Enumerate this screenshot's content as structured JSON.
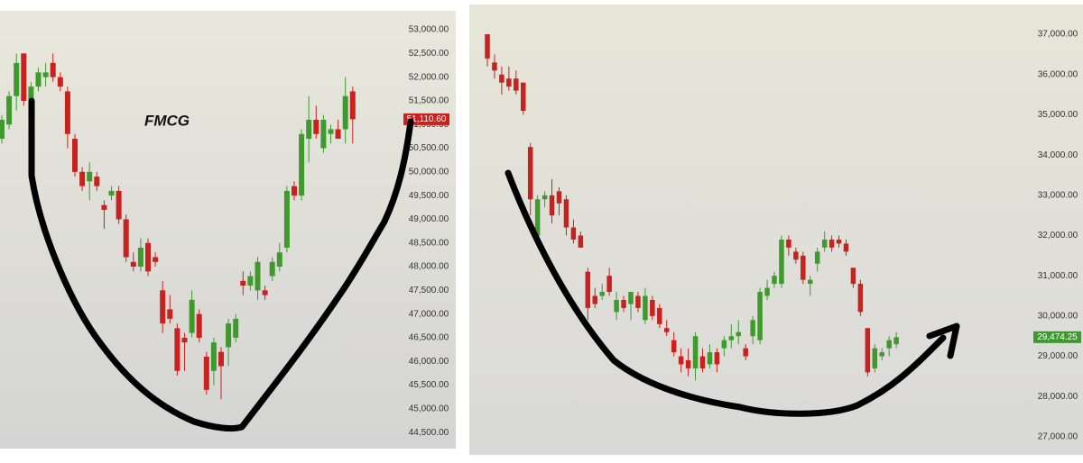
{
  "chart_data": [
    {
      "type": "candlestick",
      "title": "FMCG",
      "up_color": "#3f9a2e",
      "down_color": "#c8211e",
      "ylim": [
        44160,
        53400
      ],
      "yticks": [
        {
          "value": 53000,
          "label": "53,000.00"
        },
        {
          "value": 52500,
          "label": "52,500.00"
        },
        {
          "value": 52000,
          "label": "52,000.00"
        },
        {
          "value": 51500,
          "label": "51,500.00"
        },
        {
          "value": 51000,
          "label": "51,000.00"
        },
        {
          "value": 50500,
          "label": "50,500.00"
        },
        {
          "value": 50000,
          "label": "50,000.00"
        },
        {
          "value": 49500,
          "label": "49,500.00"
        },
        {
          "value": 49000,
          "label": "49,000.00"
        },
        {
          "value": 48500,
          "label": "48,500.00"
        },
        {
          "value": 48000,
          "label": "48,000.00"
        },
        {
          "value": 47500,
          "label": "47,500.00"
        },
        {
          "value": 47000,
          "label": "47,000.00"
        },
        {
          "value": 46500,
          "label": "46,500.00"
        },
        {
          "value": 46000,
          "label": "46,000.00"
        },
        {
          "value": 45500,
          "label": "45,500.00"
        },
        {
          "value": 45000,
          "label": "45,000.00"
        },
        {
          "value": 44500,
          "label": "44,500.00"
        }
      ],
      "last_price": {
        "value": 51110.6,
        "label": "51,110.60"
      },
      "open": [
        50700,
        51000,
        51600,
        52500,
        51500,
        51800,
        52000,
        52300,
        52000,
        51700,
        50700,
        50000,
        49800,
        49900,
        49300,
        49500,
        49600,
        49000,
        48100,
        48000,
        48500,
        48200,
        47500,
        47100,
        46700,
        46500,
        46600,
        47000,
        46100,
        45800,
        46200,
        46300,
        46500,
        47700,
        47600,
        47500,
        47500,
        47800,
        48000,
        48400,
        49700,
        49500,
        50700,
        51100,
        50500,
        50800,
        50900,
        50900,
        51700
      ],
      "high": [
        51200,
        51700,
        52500,
        52500,
        51900,
        52200,
        52300,
        52500,
        52100,
        51800,
        50800,
        50100,
        50200,
        50000,
        49400,
        49700,
        49700,
        49100,
        48300,
        48600,
        48600,
        48300,
        47700,
        47400,
        46800,
        46600,
        47500,
        47100,
        46200,
        46500,
        46300,
        46900,
        47000,
        47900,
        47900,
        48200,
        47600,
        48200,
        48500,
        49700,
        49800,
        50900,
        51600,
        51400,
        51200,
        51000,
        51100,
        52000,
        51800
      ],
      "low": [
        50600,
        50900,
        51300,
        51400,
        51300,
        51700,
        51800,
        51900,
        51700,
        50500,
        49900,
        49600,
        49400,
        49600,
        48800,
        49400,
        48900,
        48100,
        47900,
        47900,
        47800,
        48000,
        46600,
        46800,
        45700,
        45800,
        46500,
        46400,
        45300,
        45500,
        45200,
        45900,
        46400,
        47400,
        47500,
        47300,
        47300,
        47700,
        47900,
        48300,
        49400,
        49400,
        50200,
        50700,
        50400,
        50600,
        50700,
        50600,
        50600
      ],
      "close": [
        51100,
        51600,
        52300,
        51500,
        51800,
        52100,
        52100,
        52000,
        51800,
        50800,
        50000,
        49700,
        50000,
        49700,
        49200,
        49600,
        49000,
        48200,
        48000,
        48400,
        47900,
        48100,
        46800,
        46900,
        45800,
        46400,
        47300,
        46500,
        45400,
        46400,
        45900,
        46800,
        46900,
        47600,
        47800,
        48100,
        47400,
        48100,
        48300,
        49600,
        49500,
        50800,
        51100,
        50800,
        51100,
        50900,
        50700,
        51600,
        51110.6
      ]
    },
    {
      "type": "candlestick",
      "up_color": "#3f9a2e",
      "down_color": "#c8211e",
      "ylim": [
        26550,
        37740
      ],
      "yticks": [
        {
          "value": 37000,
          "label": "37,000.00"
        },
        {
          "value": 36000,
          "label": "36,000.00"
        },
        {
          "value": 35000,
          "label": "35,000.00"
        },
        {
          "value": 34000,
          "label": "34,000.00"
        },
        {
          "value": 33000,
          "label": "33,000.00"
        },
        {
          "value": 32000,
          "label": "32,000.00"
        },
        {
          "value": 31000,
          "label": "31,000.00"
        },
        {
          "value": 30000,
          "label": "30,000.00"
        },
        {
          "value": 29000,
          "label": "29,000.00"
        },
        {
          "value": 28000,
          "label": "28,000.00"
        },
        {
          "value": 27000,
          "label": "27,000.00"
        }
      ],
      "last_price": {
        "value": 29474.25,
        "label": "29,474.25"
      },
      "open": [
        37000,
        36300,
        36000,
        35900,
        35900,
        35800,
        34200,
        32000,
        32900,
        33000,
        33100,
        32900,
        32200,
        32000,
        31100,
        30500,
        30500,
        31000,
        30100,
        30400,
        30300,
        30500,
        29900,
        30400,
        30200,
        29700,
        29400,
        29000,
        28900,
        28700,
        29000,
        28800,
        29100,
        29200,
        29400,
        29500,
        29200,
        29500,
        29400,
        30500,
        30800,
        30800,
        31900,
        31600,
        31500,
        30800,
        31300,
        31700,
        31900,
        31900,
        31800,
        31200,
        30800,
        29700,
        28700,
        29000,
        29200,
        29300
      ],
      "high": [
        37000,
        36500,
        36200,
        36200,
        36100,
        35800,
        34300,
        33000,
        33100,
        33400,
        33200,
        33000,
        32400,
        32100,
        31200,
        30700,
        30800,
        31200,
        30600,
        30500,
        30600,
        30600,
        30700,
        30500,
        30300,
        29900,
        29600,
        29200,
        29200,
        29600,
        29200,
        29300,
        29200,
        29500,
        29800,
        29900,
        29300,
        30000,
        30700,
        30900,
        31100,
        32000,
        32000,
        31700,
        31600,
        31000,
        31700,
        32100,
        32000,
        32000,
        31900,
        31200,
        30900,
        29700,
        29300,
        29200,
        29500,
        29600
      ],
      "low": [
        36200,
        35900,
        35500,
        35600,
        35500,
        35000,
        32500,
        31700,
        32700,
        32300,
        32500,
        32000,
        31800,
        31700,
        29900,
        30200,
        30400,
        30500,
        29900,
        30100,
        29900,
        30100,
        29800,
        29900,
        29700,
        29500,
        29000,
        28600,
        28500,
        28400,
        28600,
        28700,
        28600,
        29000,
        29200,
        29300,
        28900,
        29300,
        29300,
        30400,
        30700,
        30700,
        31500,
        31300,
        30800,
        30500,
        31100,
        31600,
        31600,
        31700,
        31500,
        30700,
        30000,
        28500,
        28600,
        28900,
        29000,
        29200
      ],
      "close": [
        36400,
        36100,
        35800,
        35700,
        35600,
        35100,
        32900,
        32900,
        33000,
        32500,
        32800,
        32200,
        31900,
        31700,
        30200,
        30300,
        30600,
        30600,
        30400,
        30200,
        30600,
        30200,
        30500,
        30000,
        29800,
        29600,
        29100,
        28800,
        28700,
        29500,
        28700,
        29100,
        28800,
        29400,
        29500,
        29600,
        29000,
        29900,
        30600,
        30700,
        31000,
        31900,
        31700,
        31400,
        30900,
        30900,
        31600,
        31900,
        31700,
        31800,
        31600,
        30800,
        30100,
        28600,
        29200,
        29100,
        29400,
        29474.25
      ]
    }
  ]
}
